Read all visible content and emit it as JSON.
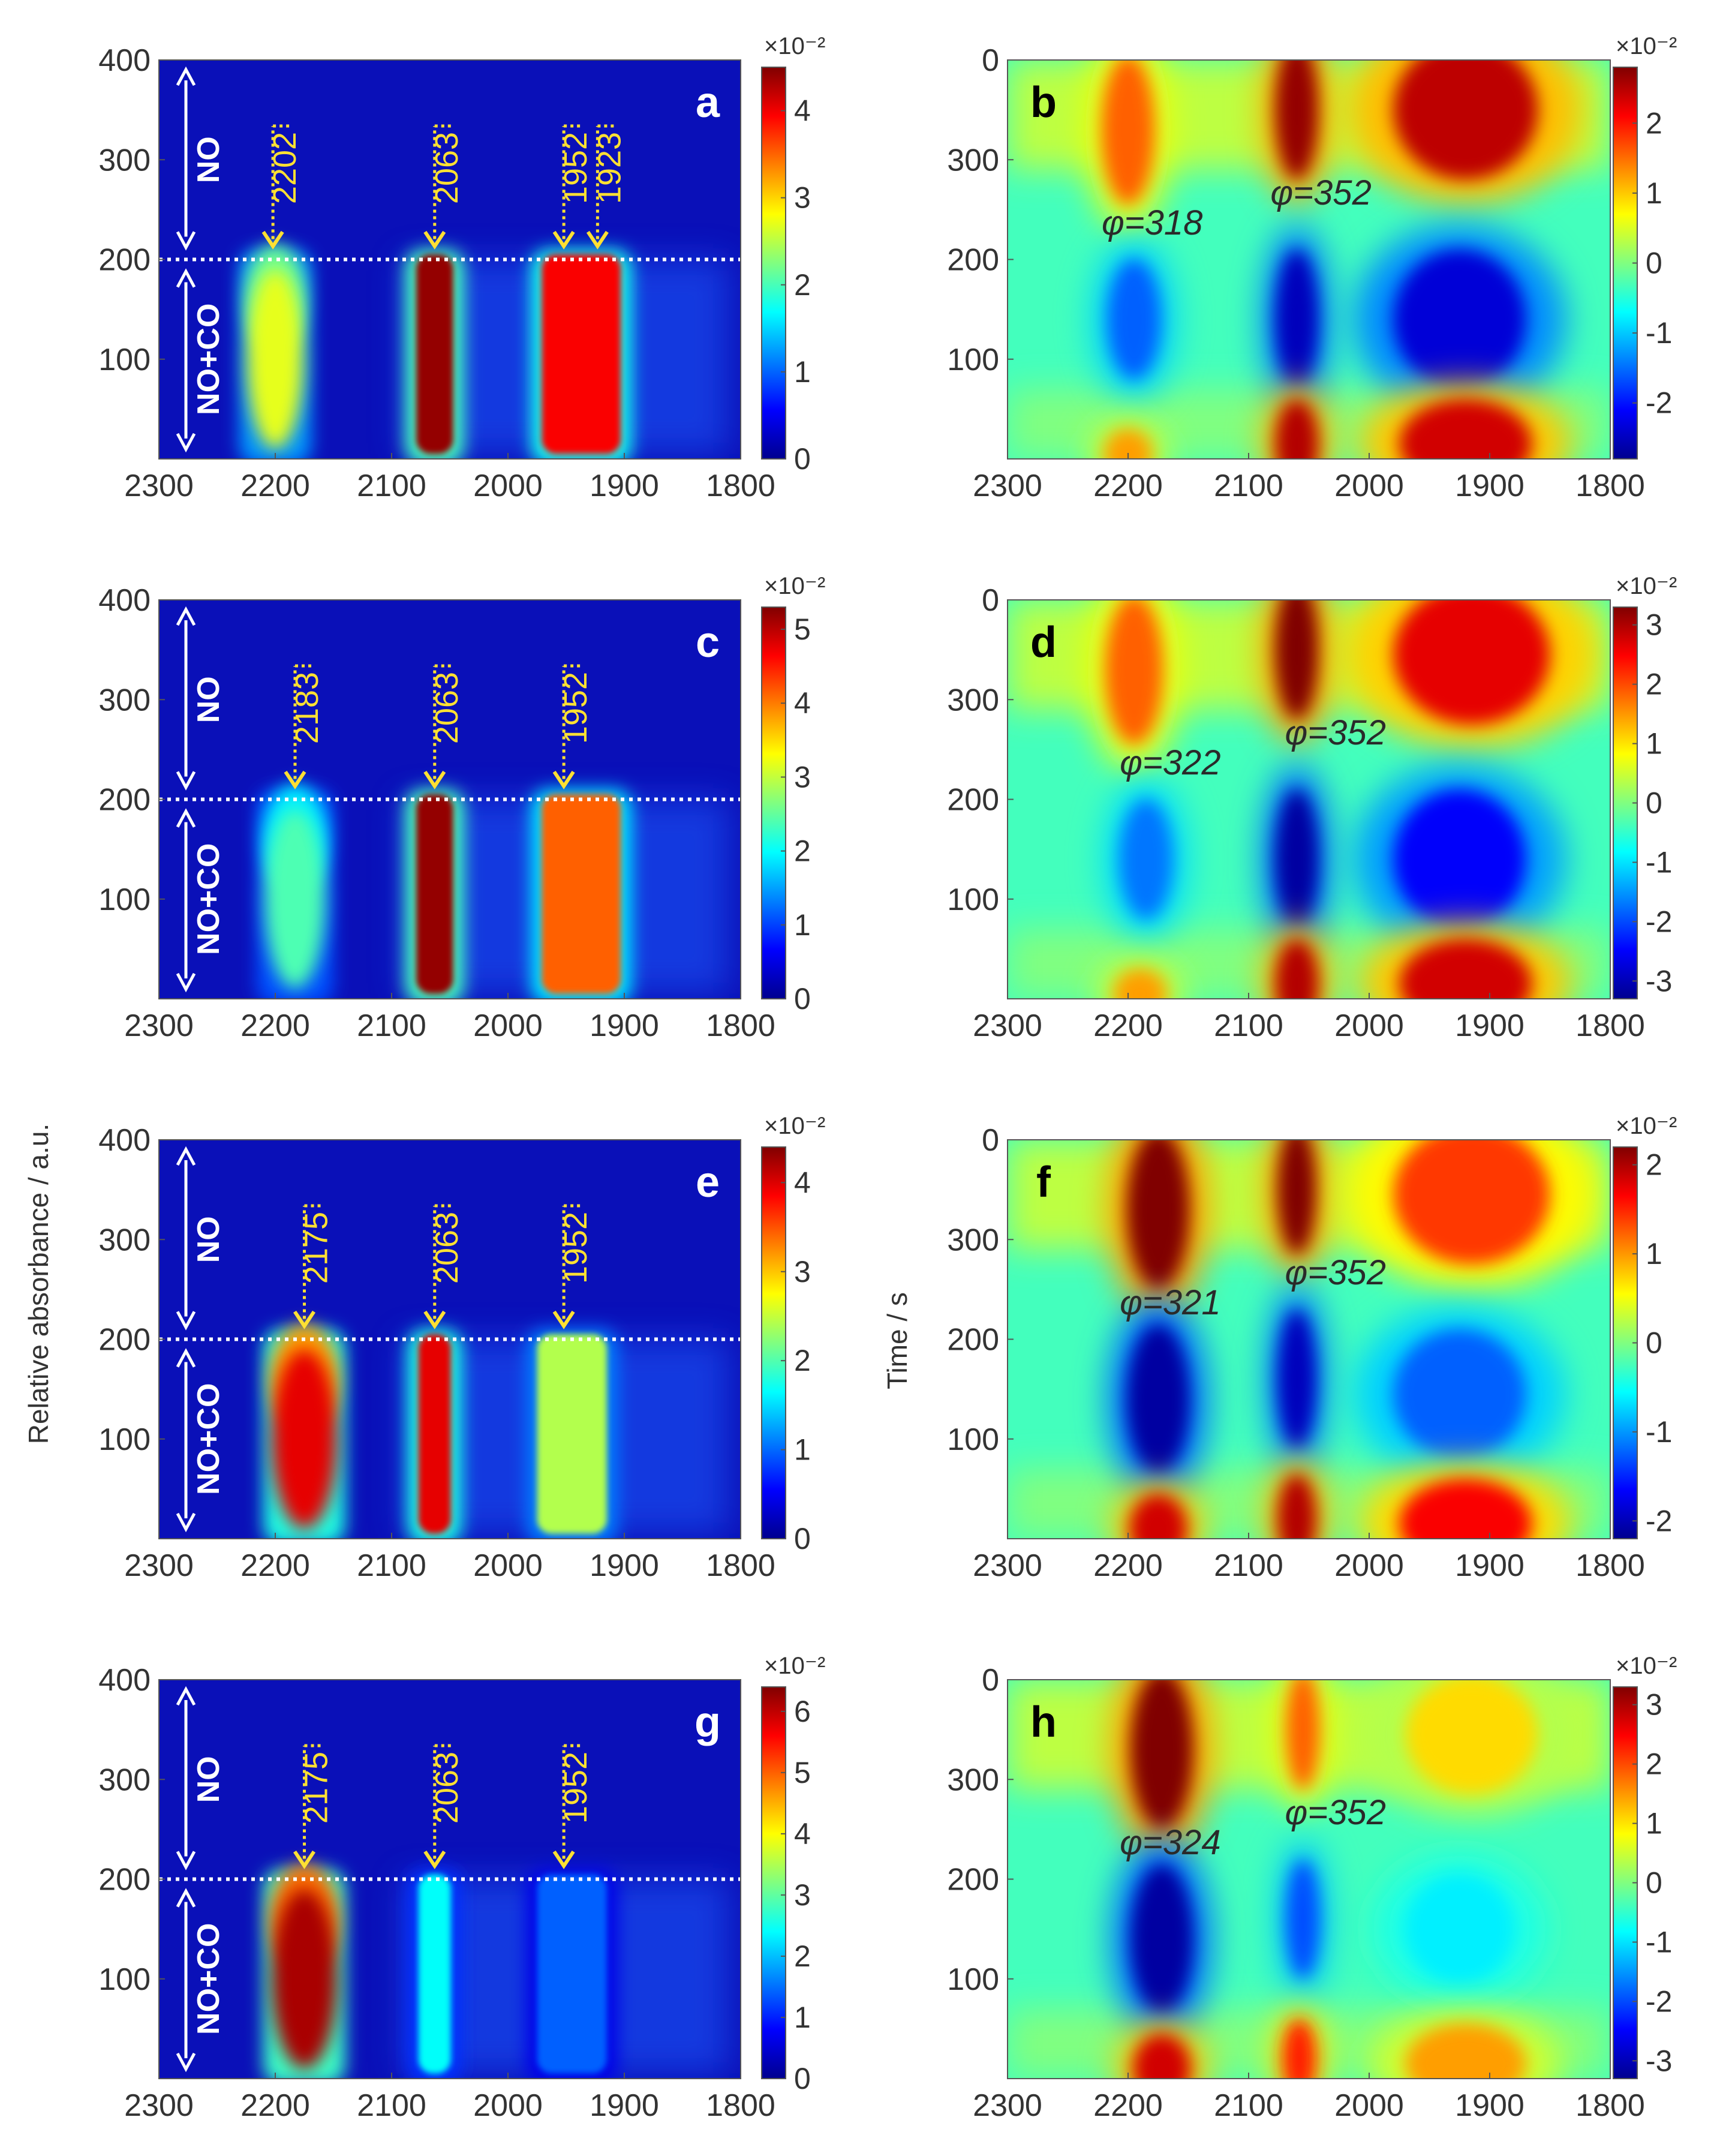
{
  "figure": {
    "ylabel_left": "Relative absorbance / a.u.",
    "ylabel_right": "Time / s",
    "x_ticks": [
      "2300",
      "2200",
      "2100",
      "2000",
      "1900",
      "1800"
    ],
    "left_y_ticks": [
      "400",
      "300",
      "200",
      "100"
    ],
    "right_y_ticks": [
      "0",
      "300",
      "200",
      "100"
    ],
    "gas_labels": {
      "top": "NO",
      "bottom": "NO+CO"
    },
    "multiplier": "×10⁻²",
    "colormap": [
      "#00008f",
      "#0000ff",
      "#0080ff",
      "#00ffff",
      "#80ff80",
      "#ffff00",
      "#ff8000",
      "#ff0000",
      "#800000"
    ]
  },
  "chart_data": [
    {
      "panel": "a",
      "type": "heatmap",
      "xlim": [
        2300,
        1800
      ],
      "ylim": [
        0,
        400
      ],
      "switch_time": 200,
      "peaks": [
        "2202",
        "2063",
        "1952",
        "1923"
      ],
      "colorbar": {
        "ticks": [
          "0",
          "1",
          "2",
          "3",
          "4"
        ],
        "max": 4.5
      }
    },
    {
      "panel": "b",
      "type": "heatmap",
      "kind": "asynchronous",
      "xlim": [
        2300,
        1800
      ],
      "ylim": [
        0,
        400
      ],
      "phase": [
        {
          "label": "φ=318",
          "x": 2180
        },
        {
          "label": "φ=352",
          "x": 2040
        }
      ],
      "colorbar": {
        "ticks": [
          "2",
          "1",
          "0",
          "-1",
          "-2"
        ],
        "min": -2.8,
        "max": 2.8
      }
    },
    {
      "panel": "c",
      "type": "heatmap",
      "xlim": [
        2300,
        1800
      ],
      "ylim": [
        0,
        400
      ],
      "switch_time": 200,
      "peaks": [
        "2183",
        "2063",
        "1952"
      ],
      "colorbar": {
        "ticks": [
          "0",
          "1",
          "2",
          "3",
          "4",
          "5"
        ],
        "max": 5.3
      }
    },
    {
      "panel": "d",
      "type": "heatmap",
      "kind": "asynchronous",
      "xlim": [
        2300,
        1800
      ],
      "ylim": [
        0,
        400
      ],
      "phase": [
        {
          "label": "φ=322",
          "x": 2165
        },
        {
          "label": "φ=352",
          "x": 2028
        }
      ],
      "colorbar": {
        "ticks": [
          "3",
          "2",
          "1",
          "0",
          "-1",
          "-2",
          "-3"
        ],
        "min": -3.3,
        "max": 3.3
      }
    },
    {
      "panel": "e",
      "type": "heatmap",
      "xlim": [
        2300,
        1800
      ],
      "ylim": [
        0,
        400
      ],
      "switch_time": 200,
      "peaks": [
        "2175",
        "2063",
        "1952"
      ],
      "colorbar": {
        "ticks": [
          "0",
          "1",
          "2",
          "3",
          "4"
        ],
        "max": 4.4
      }
    },
    {
      "panel": "f",
      "type": "heatmap",
      "kind": "asynchronous",
      "xlim": [
        2300,
        1800
      ],
      "ylim": [
        0,
        400
      ],
      "phase": [
        {
          "label": "φ=321",
          "x": 2165
        },
        {
          "label": "φ=352",
          "x": 2028
        }
      ],
      "colorbar": {
        "ticks": [
          "2",
          "1",
          "0",
          "-1",
          "-2"
        ],
        "min": -2.2,
        "max": 2.2
      }
    },
    {
      "panel": "g",
      "type": "heatmap",
      "xlim": [
        2300,
        1800
      ],
      "ylim": [
        0,
        400
      ],
      "switch_time": 200,
      "peaks": [
        "2175",
        "2063",
        "1952"
      ],
      "colorbar": {
        "ticks": [
          "0",
          "1",
          "2",
          "3",
          "4",
          "5",
          "6"
        ],
        "max": 6.4
      }
    },
    {
      "panel": "h",
      "type": "heatmap",
      "kind": "asynchronous",
      "xlim": [
        2300,
        1800
      ],
      "ylim": [
        0,
        400
      ],
      "phase": [
        {
          "label": "φ=324",
          "x": 2165
        },
        {
          "label": "φ=352",
          "x": 2028
        }
      ],
      "colorbar": {
        "ticks": [
          "3",
          "2",
          "1",
          "0",
          "-1",
          "-2",
          "-3"
        ],
        "min": -3.3,
        "max": 3.3
      }
    }
  ]
}
